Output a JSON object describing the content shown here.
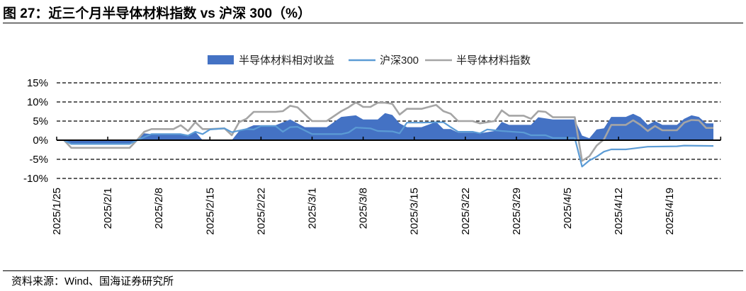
{
  "title": "图 27：近三个月半导体材料指数 vs 沪深 300（%）",
  "source": "资料来源：Wind、国海证券研究所",
  "chart_data": {
    "type": "line",
    "title": "",
    "xlabel": "",
    "ylabel": "",
    "ylim": [
      -10,
      15
    ],
    "yticks": [
      15,
      10,
      5,
      0,
      -5,
      -10
    ],
    "ytick_labels": [
      "15%",
      "10%",
      "5%",
      "0%",
      "-5%",
      "-10%"
    ],
    "xlim": [
      "2025/1/25",
      "2025/4/26"
    ],
    "xtick_labels": [
      "2025/1/25",
      "2025/2/1",
      "2025/2/8",
      "2025/2/15",
      "2025/2/22",
      "2025/3/1",
      "2025/3/8",
      "2025/3/15",
      "2025/3/22",
      "2025/3/29",
      "2025/4/5",
      "2025/4/12",
      "2025/4/19"
    ],
    "grid": "horizontal dashed",
    "legend": "top-center",
    "series": [
      {
        "name": "半导体材料相对收益",
        "type": "area",
        "color": "#4472C4",
        "points": [
          [
            "1/26",
            0
          ],
          [
            "1/27",
            -1.0
          ],
          [
            "2/4",
            -1.0
          ],
          [
            "2/5",
            0
          ],
          [
            "2/6",
            1.8
          ],
          [
            "2/7",
            1.6
          ],
          [
            "2/11",
            1.6
          ],
          [
            "2/12",
            1.3
          ],
          [
            "2/13",
            2.2
          ],
          [
            "2/14",
            0
          ],
          [
            "2/18",
            0
          ],
          [
            "2/19",
            2.4
          ],
          [
            "2/20",
            3.1
          ],
          [
            "2/21",
            3.9
          ],
          [
            "2/24",
            3.9
          ],
          [
            "2/26",
            5.4
          ],
          [
            "2/28",
            3.4
          ],
          [
            "3/3",
            3.4
          ],
          [
            "3/5",
            6.1
          ],
          [
            "3/7",
            6.5
          ],
          [
            "3/8",
            5.4
          ],
          [
            "3/10",
            5.4
          ],
          [
            "3/11",
            7.1
          ],
          [
            "3/12",
            6.6
          ],
          [
            "3/13",
            4.4
          ],
          [
            "3/14",
            3.4
          ],
          [
            "3/16",
            3.4
          ],
          [
            "3/18",
            4.8
          ],
          [
            "3/19",
            2.9
          ],
          [
            "3/20",
            2.9
          ],
          [
            "3/21",
            2.0
          ],
          [
            "3/23",
            2.0
          ],
          [
            "3/24",
            1.8
          ],
          [
            "3/26",
            2.4
          ],
          [
            "3/27",
            4.8
          ],
          [
            "3/28",
            4.0
          ],
          [
            "3/31",
            4.0
          ],
          [
            "4/1",
            6.0
          ],
          [
            "4/3",
            5.4
          ],
          [
            "4/6",
            5.4
          ],
          [
            "4/7",
            1.2
          ],
          [
            "4/8",
            0.5
          ],
          [
            "4/9",
            2.8
          ],
          [
            "4/10",
            3.1
          ],
          [
            "4/11",
            6.1
          ],
          [
            "4/13",
            6.1
          ],
          [
            "4/14",
            6.9
          ],
          [
            "4/15",
            6.0
          ],
          [
            "4/16",
            4.0
          ],
          [
            "4/17",
            5.0
          ],
          [
            "4/18",
            4.0
          ],
          [
            "4/20",
            4.0
          ],
          [
            "4/21",
            5.6
          ],
          [
            "4/22",
            6.5
          ],
          [
            "4/23",
            6.1
          ],
          [
            "4/24",
            4.4
          ],
          [
            "4/25",
            4.4
          ]
        ]
      },
      {
        "name": "沪深300",
        "type": "line",
        "color": "#5B9BD5",
        "points": [
          [
            "1/26",
            0
          ],
          [
            "1/27",
            -1.0
          ],
          [
            "2/4",
            -1.0
          ],
          [
            "2/5",
            0
          ],
          [
            "2/6",
            0.8
          ],
          [
            "2/7",
            1.6
          ],
          [
            "2/11",
            1.6
          ],
          [
            "2/12",
            1.2
          ],
          [
            "2/13",
            2.2
          ],
          [
            "2/14",
            1.6
          ],
          [
            "2/15",
            2.8
          ],
          [
            "2/17",
            3.1
          ],
          [
            "2/18",
            2.1
          ],
          [
            "2/20",
            2.9
          ],
          [
            "2/21",
            2.8
          ],
          [
            "2/22",
            3.7
          ],
          [
            "2/24",
            3.7
          ],
          [
            "2/25",
            2.2
          ],
          [
            "2/26",
            3.4
          ],
          [
            "2/27",
            3.5
          ],
          [
            "3/1",
            1.6
          ],
          [
            "3/5",
            1.6
          ],
          [
            "3/6",
            2.0
          ],
          [
            "3/7",
            3.3
          ],
          [
            "3/9",
            3.1
          ],
          [
            "3/10",
            2.4
          ],
          [
            "3/12",
            2.3
          ],
          [
            "3/13",
            1.8
          ],
          [
            "3/14",
            4.6
          ],
          [
            "3/16",
            4.6
          ],
          [
            "3/18",
            4.7
          ],
          [
            "3/19",
            4.7
          ],
          [
            "3/20",
            3.4
          ],
          [
            "3/21",
            2.2
          ],
          [
            "3/23",
            2.2
          ],
          [
            "3/24",
            1.8
          ],
          [
            "3/25",
            2.8
          ],
          [
            "3/27",
            2.4
          ],
          [
            "3/30",
            2.0
          ],
          [
            "3/31",
            1.3
          ],
          [
            "4/2",
            1.3
          ],
          [
            "4/3",
            0.6
          ],
          [
            "4/6",
            0.6
          ],
          [
            "4/7",
            -6.9
          ],
          [
            "4/8",
            -5.3
          ],
          [
            "4/9",
            -4.3
          ],
          [
            "4/10",
            -3.0
          ],
          [
            "4/11",
            -2.4
          ],
          [
            "4/13",
            -2.4
          ],
          [
            "4/16",
            -1.7
          ],
          [
            "4/20",
            -1.6
          ],
          [
            "4/21",
            -1.4
          ],
          [
            "4/25",
            -1.5
          ]
        ]
      },
      {
        "name": "半导体材料指数",
        "type": "line",
        "color": "#A5A5A5",
        "points": [
          [
            "1/26",
            0
          ],
          [
            "1/27",
            -2.0
          ],
          [
            "2/4",
            -2.0
          ],
          [
            "2/5",
            0
          ],
          [
            "2/6",
            2.2
          ],
          [
            "2/7",
            2.9
          ],
          [
            "2/10",
            2.9
          ],
          [
            "2/11",
            3.9
          ],
          [
            "2/12",
            2.4
          ],
          [
            "2/13",
            4.7
          ],
          [
            "2/14",
            2.9
          ],
          [
            "2/15",
            2.9
          ],
          [
            "2/17",
            3.1
          ],
          [
            "2/18",
            1.3
          ],
          [
            "2/19",
            4.7
          ],
          [
            "2/20",
            5.6
          ],
          [
            "2/21",
            7.4
          ],
          [
            "2/24",
            7.4
          ],
          [
            "2/25",
            7.6
          ],
          [
            "2/26",
            9.0
          ],
          [
            "2/27",
            8.6
          ],
          [
            "3/1",
            5.0
          ],
          [
            "3/3",
            5.0
          ],
          [
            "3/5",
            7.6
          ],
          [
            "3/6",
            8.6
          ],
          [
            "3/7",
            9.9
          ],
          [
            "3/8",
            8.7
          ],
          [
            "3/9",
            8.7
          ],
          [
            "3/10",
            9.8
          ],
          [
            "3/11",
            9.8
          ],
          [
            "3/12",
            9.5
          ],
          [
            "3/13",
            6.7
          ],
          [
            "3/14",
            8.2
          ],
          [
            "3/16",
            8.2
          ],
          [
            "3/18",
            9.2
          ],
          [
            "3/19",
            7.6
          ],
          [
            "3/20",
            6.9
          ],
          [
            "3/21",
            5.0
          ],
          [
            "3/23",
            5.0
          ],
          [
            "3/24",
            4.4
          ],
          [
            "3/26",
            5.0
          ],
          [
            "3/27",
            7.8
          ],
          [
            "3/28",
            6.4
          ],
          [
            "3/30",
            6.4
          ],
          [
            "3/31",
            5.6
          ],
          [
            "4/1",
            7.6
          ],
          [
            "4/2",
            7.4
          ],
          [
            "4/3",
            6.0
          ],
          [
            "4/6",
            6.0
          ],
          [
            "4/7",
            -5.4
          ],
          [
            "4/8",
            -4.2
          ],
          [
            "4/9",
            -1.4
          ],
          [
            "4/10",
            0.2
          ],
          [
            "4/11",
            4.0
          ],
          [
            "4/13",
            4.0
          ],
          [
            "4/14",
            5.2
          ],
          [
            "4/15",
            4.0
          ],
          [
            "4/16",
            2.4
          ],
          [
            "4/17",
            3.7
          ],
          [
            "4/18",
            2.6
          ],
          [
            "4/20",
            2.6
          ],
          [
            "4/21",
            4.6
          ],
          [
            "4/22",
            5.3
          ],
          [
            "4/23",
            5.2
          ],
          [
            "4/24",
            3.2
          ],
          [
            "4/25",
            3.2
          ]
        ]
      }
    ]
  }
}
